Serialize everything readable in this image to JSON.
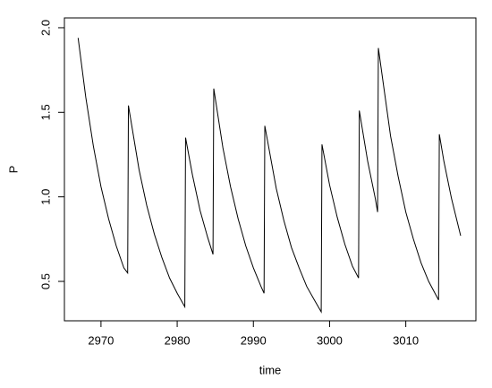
{
  "chart_data": {
    "type": "line",
    "x_label": "time",
    "y_label": "P",
    "x": [
      2967,
      2968,
      2969,
      2970,
      2971,
      2972,
      2973,
      2973.5,
      2973.6,
      2975,
      2976,
      2977,
      2978,
      2979,
      2980,
      2981,
      2981.1,
      2982,
      2983,
      2984,
      2984.7,
      2984.8,
      2986,
      2987,
      2988,
      2989,
      2990,
      2991,
      2991.4,
      2991.5,
      2993,
      2994,
      2995,
      2996,
      2997,
      2998,
      2998.9,
      2999,
      3000,
      3001,
      3002,
      3003,
      3003.8,
      3003.9,
      3005,
      3006,
      3006.3,
      3006.4,
      3008,
      3009,
      3010,
      3011,
      3012,
      3013,
      3014.3,
      3014.4,
      3015,
      3016,
      3017.2
    ],
    "series": [
      {
        "color": "#000000",
        "values": [
          1.94,
          1.59,
          1.3,
          1.06,
          0.87,
          0.71,
          0.58,
          0.55,
          1.54,
          1.16,
          0.95,
          0.78,
          0.64,
          0.52,
          0.43,
          0.35,
          1.35,
          1.13,
          0.92,
          0.76,
          0.66,
          1.64,
          1.29,
          1.06,
          0.87,
          0.71,
          0.58,
          0.47,
          0.43,
          1.42,
          1.05,
          0.86,
          0.7,
          0.58,
          0.47,
          0.39,
          0.32,
          1.31,
          1.07,
          0.88,
          0.72,
          0.59,
          0.52,
          1.51,
          1.21,
          0.99,
          0.91,
          1.88,
          1.36,
          1.12,
          0.91,
          0.75,
          0.61,
          0.5,
          0.39,
          1.37,
          1.21,
          0.99,
          0.77
        ]
      }
    ],
    "xlim": [
      2965.2,
      3019.2
    ],
    "ylim": [
      0.267,
      2.058
    ],
    "xticks": [
      2970,
      2980,
      2990,
      3000,
      3010
    ],
    "yticks": [
      {
        "value": 0.5,
        "label": "0.5"
      },
      {
        "value": 1.0,
        "label": "1.0"
      },
      {
        "value": 1.5,
        "label": "1.5"
      },
      {
        "value": 2.0,
        "label": "2.0"
      }
    ]
  }
}
